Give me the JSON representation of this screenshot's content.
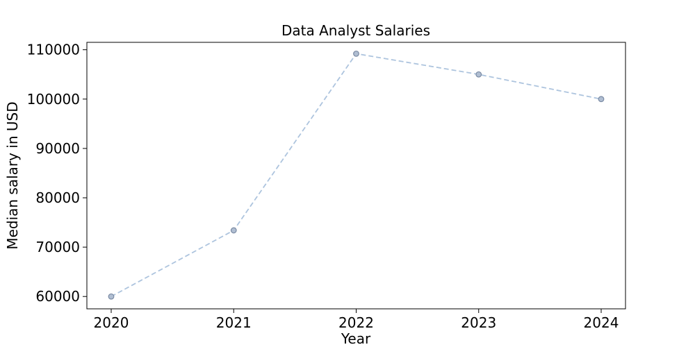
{
  "chart_data": {
    "type": "line",
    "title": "Data Analyst Salaries",
    "xlabel": "Year",
    "ylabel": "Median salary in USD",
    "categories": [
      "2020",
      "2021",
      "2022",
      "2023",
      "2024"
    ],
    "series": [
      {
        "values": [
          60000,
          73400,
          109200,
          105000,
          100000
        ]
      }
    ],
    "ylim": [
      57500,
      111500
    ],
    "yticks": [
      "60000",
      "70000",
      "80000",
      "90000",
      "100000",
      "110000"
    ],
    "grid": false,
    "line_style": "dashed",
    "colors": {
      "line": "#adc4de",
      "marker_fill": "#b0bed2",
      "marker_edge": "#7a8aa3"
    }
  }
}
